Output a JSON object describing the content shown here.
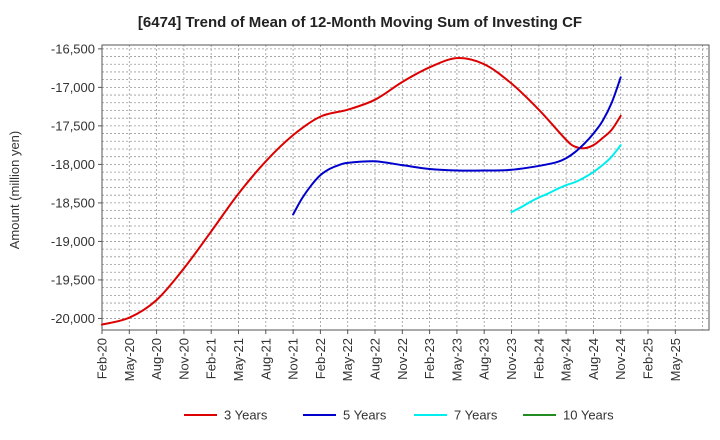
{
  "chart_data": {
    "type": "line",
    "title": "[6474]  Trend of Mean of 12-Month Moving Sum of Investing CF",
    "xlabel": "",
    "ylabel": "Amount (million yen)",
    "ylim": [
      -20150,
      -16450
    ],
    "yticks": [
      -16500,
      -17000,
      -17500,
      -18000,
      -18500,
      -19000,
      -19500,
      -20000
    ],
    "ytick_labels": [
      "-16,500",
      "-17,000",
      "-17,500",
      "-18,000",
      "-18,500",
      "-19,000",
      "-19,500",
      "-20,000"
    ],
    "x_categories": [
      "Feb-20",
      "May-20",
      "Aug-20",
      "Nov-20",
      "Feb-21",
      "May-21",
      "Aug-21",
      "Nov-21",
      "Feb-22",
      "May-22",
      "Aug-22",
      "Nov-22",
      "Feb-23",
      "May-23",
      "Aug-23",
      "Nov-23",
      "Feb-24",
      "May-24",
      "Aug-24",
      "Nov-24",
      "Feb-25",
      "May-25"
    ],
    "grid": true,
    "legend_position": "bottom",
    "series": [
      {
        "name": "3 Years",
        "color": "#dd0000",
        "x": [
          0,
          1,
          2,
          3,
          4,
          5,
          6,
          7,
          8,
          9,
          10,
          11,
          12,
          13,
          14,
          15,
          16,
          17,
          17.33,
          17.67,
          18,
          18.33,
          18.67,
          19
        ],
        "values": [
          -20080,
          -19990,
          -19760,
          -19350,
          -18870,
          -18380,
          -17960,
          -17620,
          -17380,
          -17290,
          -17160,
          -16930,
          -16740,
          -16620,
          -16700,
          -16950,
          -17290,
          -17680,
          -17770,
          -17790,
          -17750,
          -17660,
          -17550,
          -17370
        ]
      },
      {
        "name": "5 Years",
        "color": "#0000cc",
        "x": [
          7,
          7.33,
          7.67,
          8,
          8.33,
          8.67,
          9,
          10,
          11,
          12,
          13,
          14,
          15,
          16,
          16.67,
          17,
          17.33,
          17.67,
          18,
          18.33,
          18.67,
          19
        ],
        "values": [
          -18650,
          -18440,
          -18270,
          -18140,
          -18060,
          -18010,
          -17980,
          -17960,
          -18010,
          -18060,
          -18080,
          -18080,
          -18070,
          -18020,
          -17970,
          -17920,
          -17840,
          -17730,
          -17600,
          -17440,
          -17200,
          -16870
        ]
      },
      {
        "name": "7 Years",
        "color": "#00eeee",
        "x": [
          15,
          15.33,
          15.67,
          16,
          16.33,
          16.67,
          17,
          17.33,
          17.67,
          18,
          18.33,
          18.67,
          19
        ],
        "values": [
          -18620,
          -18560,
          -18490,
          -18430,
          -18380,
          -18320,
          -18270,
          -18230,
          -18170,
          -18100,
          -18010,
          -17900,
          -17750
        ]
      },
      {
        "name": "10 Years",
        "color": "#228b22",
        "x": [],
        "values": []
      }
    ]
  }
}
